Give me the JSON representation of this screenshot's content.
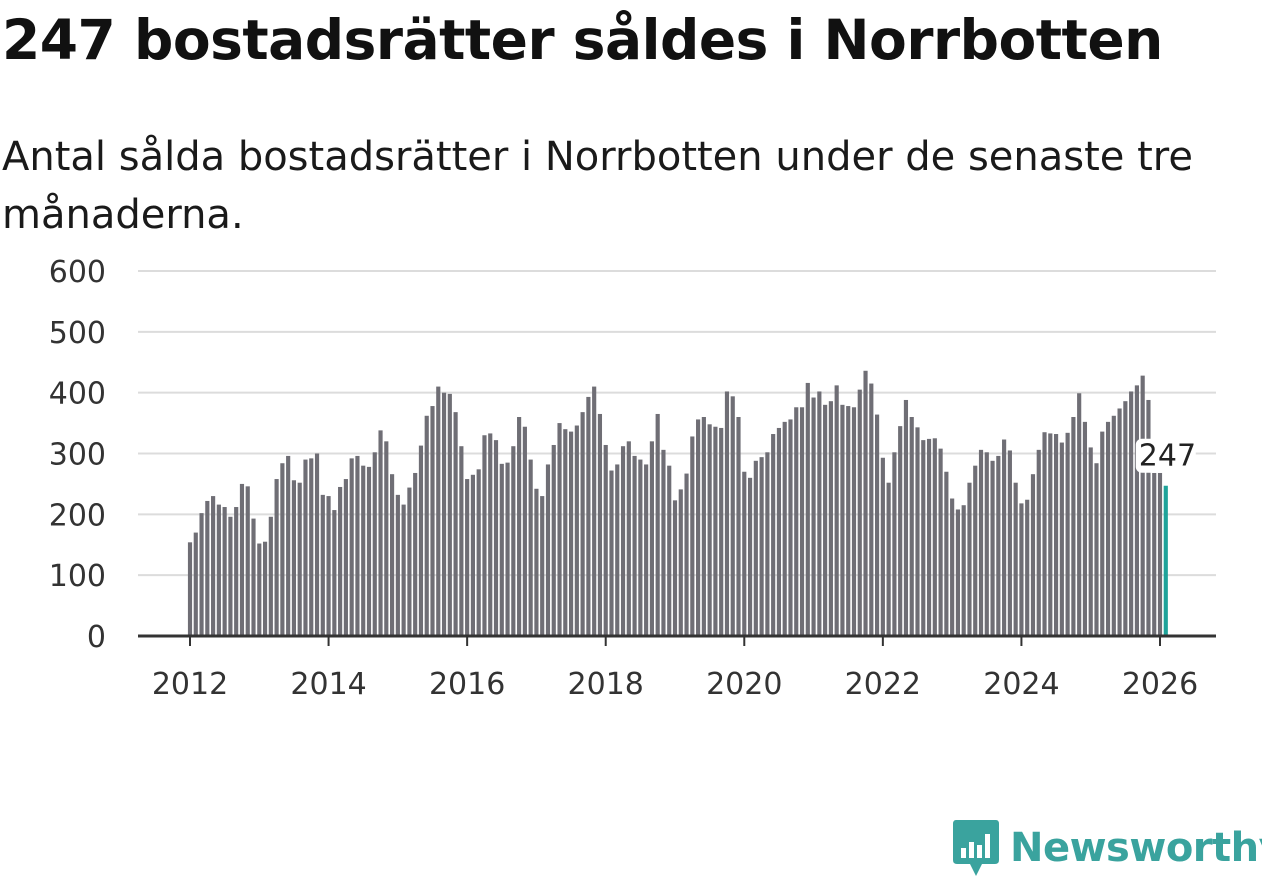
{
  "title": "247 bostadsrätter såldes i Norrbotten",
  "subtitle": "Antal sålda bostadsrätter i Norrbotten under de senaste tre månaderna.",
  "brand": {
    "name": "Newsworthy",
    "color": "#3aa39e",
    "icon": "bar-chart-pin-icon"
  },
  "colors": {
    "bar": "#6f6e75",
    "highlight": "#1fa39a"
  },
  "chart_data": {
    "type": "bar",
    "title": "247 bostadsrätter såldes i Norrbotten",
    "xlabel": "",
    "ylabel": "",
    "ylim": [
      0,
      600
    ],
    "yticks": [
      0,
      100,
      200,
      300,
      400,
      500,
      600
    ],
    "ytick_labels": [
      "0",
      "100",
      "200",
      "300",
      "400",
      "500",
      "600"
    ],
    "xticks": [
      2012,
      2014,
      2016,
      2018,
      2020,
      2022,
      2024,
      2026
    ],
    "xtick_labels": [
      "2012",
      "2014",
      "2016",
      "2018",
      "2020",
      "2022",
      "2024",
      "2026"
    ],
    "start": "2012-01",
    "grid": true,
    "highlight_last": true,
    "last_value_label": "247",
    "values": [
      154,
      170,
      202,
      222,
      230,
      216,
      212,
      196,
      212,
      250,
      246,
      193,
      152,
      155,
      196,
      258,
      284,
      296,
      256,
      252,
      290,
      292,
      300,
      232,
      230,
      207,
      245,
      258,
      292,
      296,
      280,
      278,
      302,
      338,
      320,
      266,
      232,
      216,
      244,
      268,
      313,
      362,
      378,
      410,
      400,
      398,
      368,
      312,
      258,
      265,
      274,
      330,
      333,
      322,
      283,
      285,
      312,
      360,
      344,
      290,
      242,
      230,
      282,
      314,
      350,
      340,
      336,
      346,
      368,
      393,
      410,
      365,
      314,
      272,
      282,
      312,
      320,
      296,
      290,
      282,
      320,
      365,
      306,
      280,
      223,
      241,
      267,
      328,
      356,
      360,
      348,
      344,
      342,
      402,
      394,
      360,
      270,
      260,
      288,
      294,
      302,
      332,
      342,
      352,
      356,
      376,
      376,
      416,
      392,
      402,
      380,
      386,
      412,
      380,
      378,
      376,
      405,
      436,
      415,
      364,
      293,
      252,
      302,
      345,
      388,
      360,
      343,
      322,
      324,
      325,
      308,
      270,
      226,
      208,
      215,
      252,
      280,
      306,
      302,
      288,
      296,
      323,
      305,
      252,
      218,
      224,
      266,
      306,
      335,
      333,
      332,
      318,
      334,
      360,
      399,
      352,
      310,
      284,
      336,
      352,
      362,
      374,
      386,
      402,
      412,
      428,
      388,
      268,
      268,
      247
    ]
  }
}
